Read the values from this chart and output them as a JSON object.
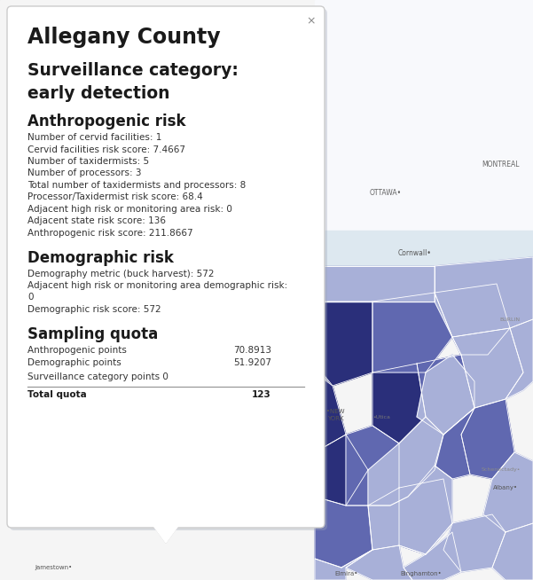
{
  "title": "Allegany County",
  "subtitle_line1": "Surveillance category:",
  "subtitle_line2": "early detection",
  "section1_header": "Anthropogenic risk",
  "section1_items": [
    "Number of cervid facilities: 1",
    "Cervid facilities risk score: 7.4667",
    "Number of taxidermists: 5",
    "Number of processors: 3",
    "Total number of taxidermists and processors: 8",
    "Processor/Taxidermist risk score: 68.4",
    "Adjacent high risk or monitoring area risk: 0",
    "Adjacent state risk score: 136",
    "Anthropogenic risk score: 211.8667"
  ],
  "section2_header": "Demographic risk",
  "section2_items": [
    "Demography metric (buck harvest): 572",
    "Adjacent high risk or monitoring area demographic risk:\n0",
    "Demographic risk score: 572"
  ],
  "section3_header": "Sampling quota",
  "quota_rows": [
    {
      "label": "Anthropogenic points",
      "value": "70.8913",
      "inline": false
    },
    {
      "label": "Demographic points",
      "value": "51.9207",
      "inline": false
    },
    {
      "label": "Surveillance category points",
      "value": "0",
      "inline": true
    }
  ],
  "total_label": "Total quota",
  "total_value": "123",
  "close_symbol": "×",
  "map_bg_color": "#f0f2f8",
  "map_water_color": "#e4ecf5",
  "map_land_color": "#f5f5f5",
  "region_dark1": "#2a2f7a",
  "region_dark2": "#3d4490",
  "region_mid1": "#6068b0",
  "region_mid2": "#7880c5",
  "region_light1": "#9099cc",
  "region_light2": "#a8b0d8",
  "region_light3": "#bec5e2",
  "outer_border": "#b0b8c8",
  "popup_bg": "#ffffff",
  "popup_shadow": "#a0a8b8",
  "popup_border": "#cccccc",
  "text_color": "#333333",
  "header_color": "#1a1a1a",
  "divider_color": "#999999",
  "close_color": "#888888"
}
